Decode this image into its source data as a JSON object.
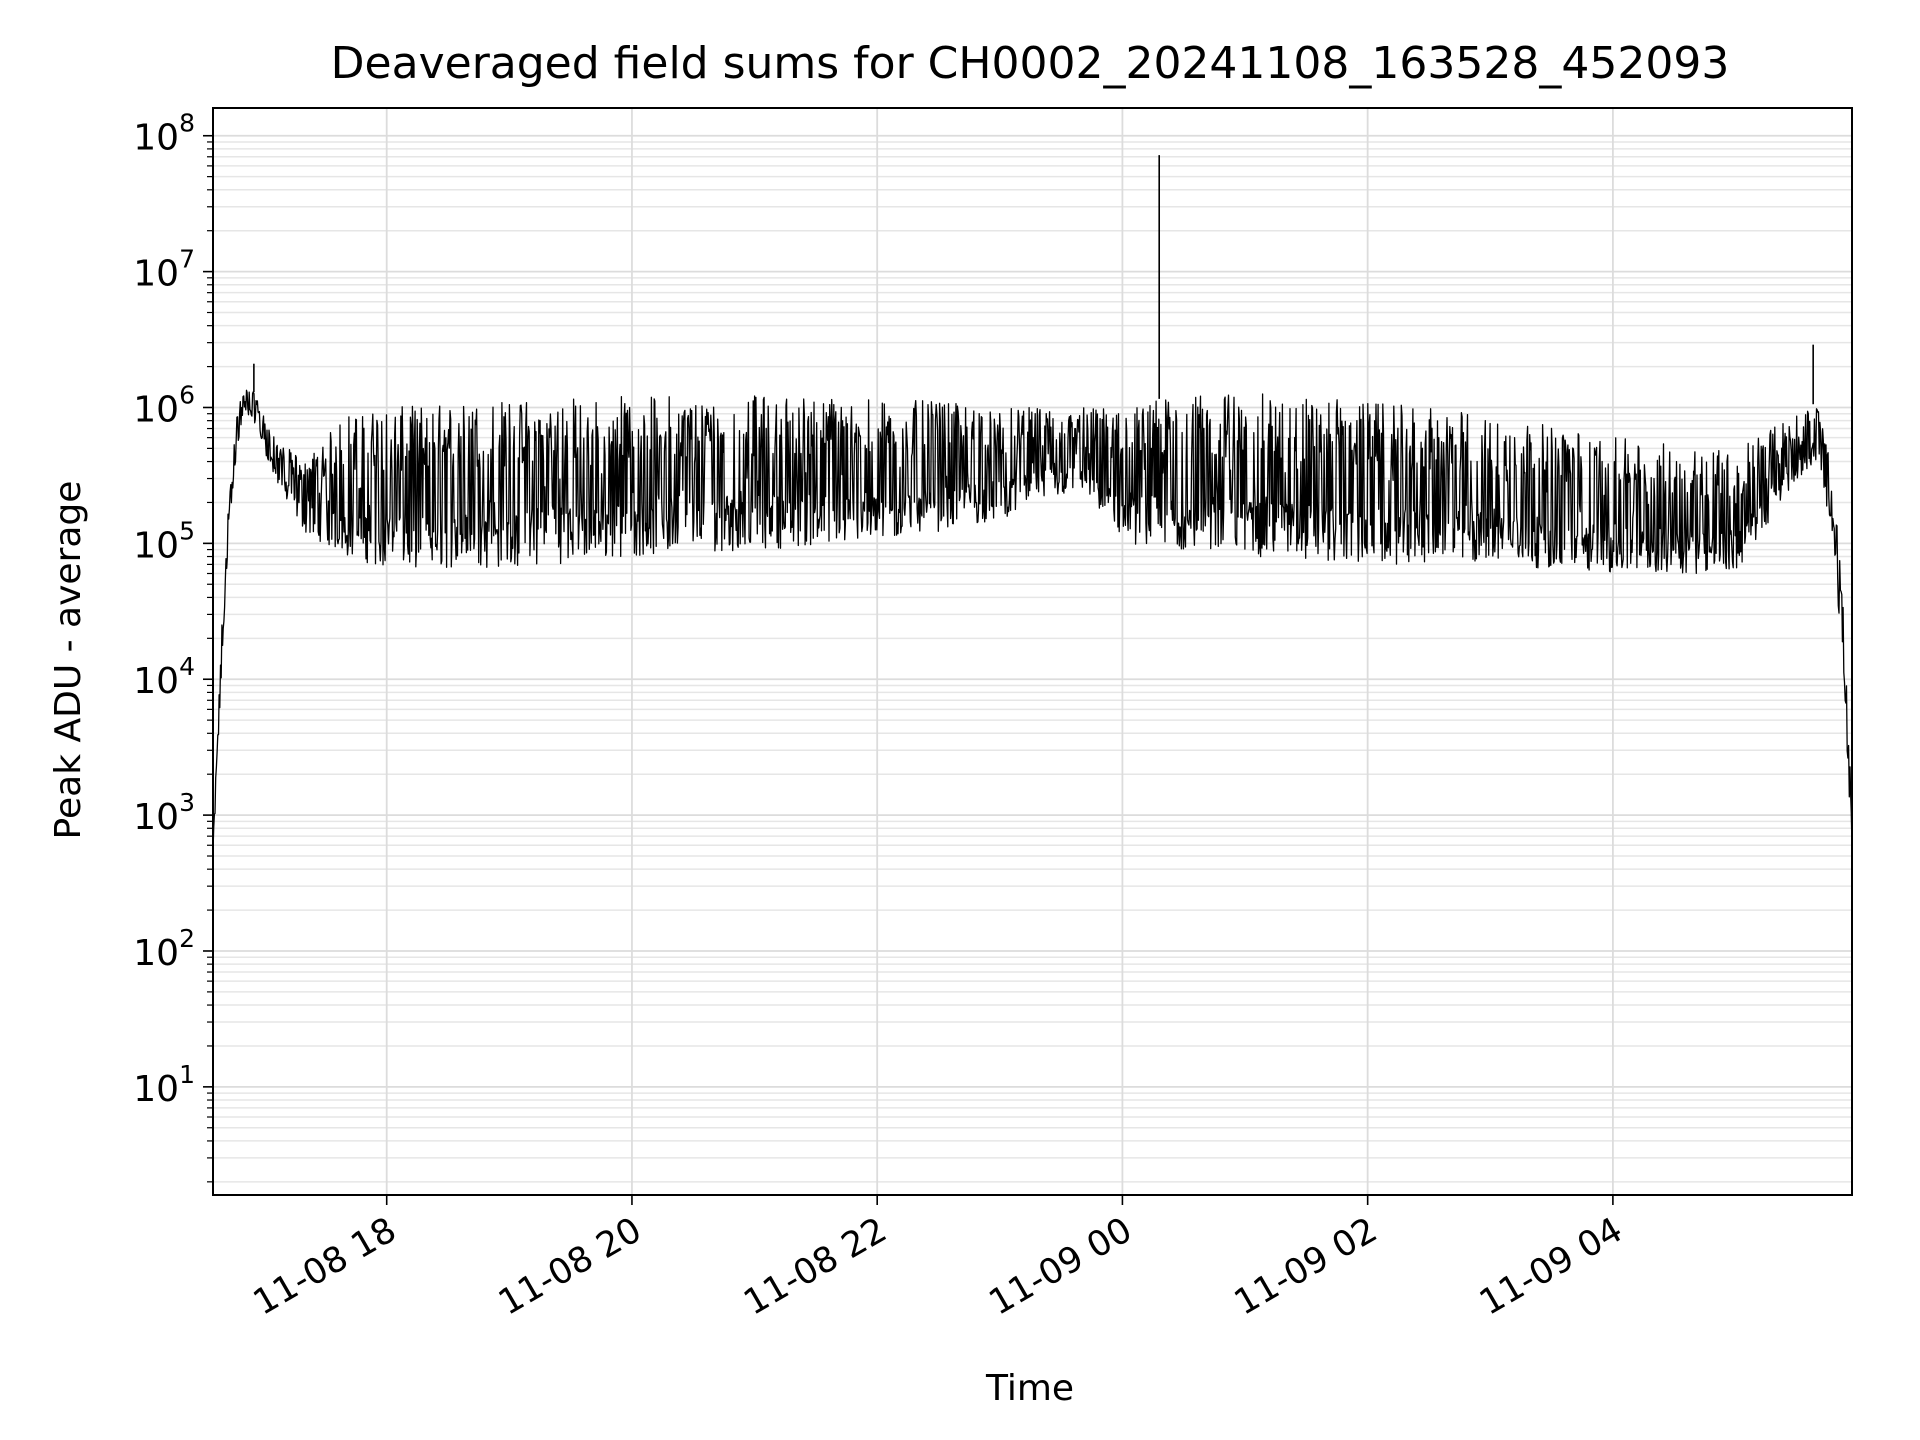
{
  "chart_data": {
    "type": "line",
    "title": "Deaveraged field sums for CH0002_20241108_163528_452093",
    "xlabel": "Time",
    "ylabel": "Peak ADU - average",
    "yscale": "log",
    "ylim": [
      1.6,
      160000000.0
    ],
    "xlim": [
      "2024-11-08 16:35",
      "2024-11-09 05:57"
    ],
    "grid": true,
    "x_ticks": [
      "2024-11-08 18:00",
      "2024-11-08 20:00",
      "2024-11-08 22:00",
      "2024-11-09 00:00",
      "2024-11-09 02:00",
      "2024-11-09 04:00"
    ],
    "x_tick_labels": [
      "11-08 18",
      "11-08 20",
      "11-08 22",
      "11-09 00",
      "11-09 02",
      "11-09 04"
    ],
    "y_ticks": [
      10,
      100,
      1000,
      10000,
      100000,
      1000000,
      10000000,
      100000000
    ],
    "y_tick_labels": [
      {
        "base": "10",
        "exp": "1"
      },
      {
        "base": "10",
        "exp": "2"
      },
      {
        "base": "10",
        "exp": "3"
      },
      {
        "base": "10",
        "exp": "4"
      },
      {
        "base": "10",
        "exp": "5"
      },
      {
        "base": "10",
        "exp": "6"
      },
      {
        "base": "10",
        "exp": "7"
      },
      {
        "base": "10",
        "exp": "8"
      }
    ],
    "series": [
      {
        "color": "#000000",
        "envelope": [
          {
            "x": "2024-11-08 16:35",
            "low": 400,
            "high": 600
          },
          {
            "x": "2024-11-08 16:40",
            "low": 20000,
            "high": 50000
          },
          {
            "x": "2024-11-08 16:45",
            "low": 300000,
            "high": 700000
          },
          {
            "x": "2024-11-08 16:50",
            "low": 900000,
            "high": 1400000
          },
          {
            "x": "2024-11-08 16:55",
            "low": 800000,
            "high": 1300000
          },
          {
            "x": "2024-11-08 17:05",
            "low": 300000,
            "high": 600000
          },
          {
            "x": "2024-11-08 17:20",
            "low": 120000,
            "high": 400000
          },
          {
            "x": "2024-11-08 17:40",
            "low": 80000,
            "high": 900000
          },
          {
            "x": "2024-11-08 18:00",
            "low": 65000,
            "high": 1000000
          },
          {
            "x": "2024-11-08 19:00",
            "low": 65000,
            "high": 1150000
          },
          {
            "x": "2024-11-08 20:00",
            "low": 80000,
            "high": 1250000
          },
          {
            "x": "2024-11-08 21:00",
            "low": 90000,
            "high": 1250000
          },
          {
            "x": "2024-11-08 22:00",
            "low": 100000,
            "high": 1200000
          },
          {
            "x": "2024-11-08 23:00",
            "low": 150000,
            "high": 1000000
          },
          {
            "x": "2024-11-08 23:40",
            "low": 250000,
            "high": 1000000
          },
          {
            "x": "2024-11-09 00:00",
            "low": 100000,
            "high": 1100000
          },
          {
            "x": "2024-11-09 01:00",
            "low": 80000,
            "high": 1300000
          },
          {
            "x": "2024-11-09 02:00",
            "low": 70000,
            "high": 1100000
          },
          {
            "x": "2024-11-09 03:00",
            "low": 70000,
            "high": 900000
          },
          {
            "x": "2024-11-09 04:00",
            "low": 60000,
            "high": 600000
          },
          {
            "x": "2024-11-09 05:00",
            "low": 60000,
            "high": 500000
          },
          {
            "x": "2024-11-09 05:30",
            "low": 300000,
            "high": 900000
          },
          {
            "x": "2024-11-09 05:40",
            "low": 400000,
            "high": 1100000
          },
          {
            "x": "2024-11-09 05:48",
            "low": 100000,
            "high": 300000
          },
          {
            "x": "2024-11-09 05:53",
            "low": 10000,
            "high": 30000
          },
          {
            "x": "2024-11-09 05:57",
            "low": 500,
            "high": 1000
          }
        ],
        "spikes": [
          {
            "x": "2024-11-08 16:55",
            "y": 2100000
          },
          {
            "x": "2024-11-09 00:18",
            "y": 72000000
          },
          {
            "x": "2024-11-09 05:38",
            "y": 2900000
          }
        ]
      }
    ]
  }
}
